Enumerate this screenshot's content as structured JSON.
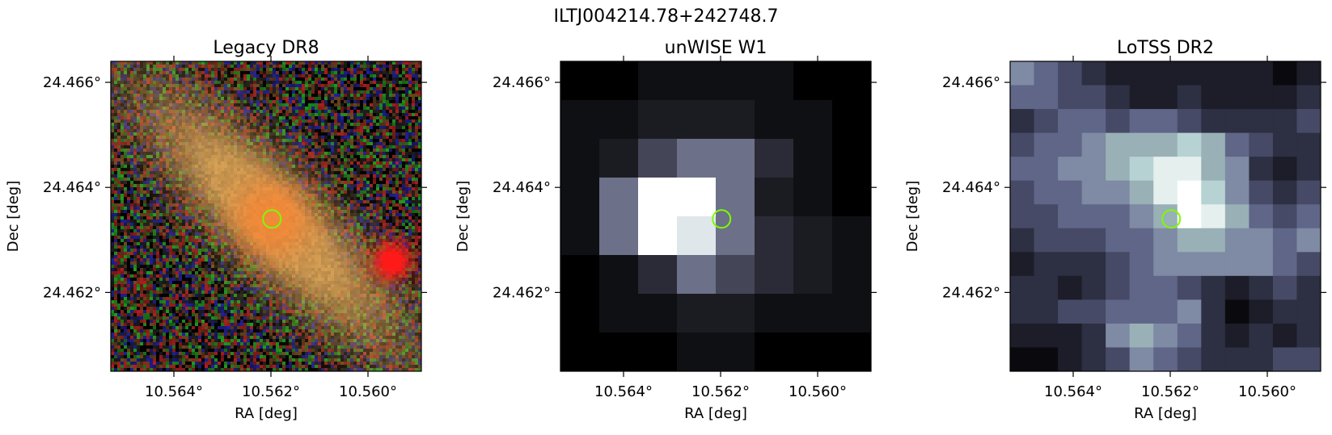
{
  "figure": {
    "title": "ILTJ004214.78+242748.7"
  },
  "colors": {
    "marker": "#7CFC00",
    "axis": "#000000",
    "legacy_core": "#F08A3A",
    "legacy_red_blob": "#FF1A1A",
    "noise": [
      "#1a1a1a",
      "#8a1a1a",
      "#1a7a1a",
      "#1a1a7a",
      "#5a3a1a",
      "#000000"
    ],
    "lotss_palette": [
      "#0a0a0e",
      "#1c1d28",
      "#2d2f42",
      "#464a66",
      "#5f6688",
      "#7f8aa4",
      "#99b0b6",
      "#b7d2d2",
      "#e4efee",
      "#ffffff"
    ],
    "unwise_palette": [
      "#000000",
      "#0f1013",
      "#1b1c22",
      "#2a2b36",
      "#444657",
      "#6c7088",
      "#9499a8",
      "#dfe7ea",
      "#ffffff"
    ]
  },
  "chart_data": [
    {
      "type": "heatmap",
      "title": "Legacy DR8",
      "xlabel": "RA [deg]",
      "ylabel": "Dec [deg]",
      "xlim": [
        10.5653,
        10.5589
      ],
      "ylim": [
        24.4605,
        24.4664
      ],
      "xticks": [
        10.564,
        10.562,
        10.56
      ],
      "xtick_labels": [
        "10.564°",
        "10.562°",
        "10.560°"
      ],
      "yticks": [
        24.466,
        24.464,
        24.462
      ],
      "ytick_labels": [
        "24.466°",
        "24.464°",
        "24.462°"
      ],
      "marker": {
        "ra": 10.56198,
        "dec": 24.4634,
        "shape": "circle"
      },
      "image": "RGB composite; elongated orange galaxy along diagonal, bright red compact source near lower right (RA 10.5595, Dec 24.4626), colored noise background"
    },
    {
      "type": "heatmap",
      "title": "unWISE W1",
      "xlabel": "RA [deg]",
      "ylabel": "Dec [deg]",
      "xlim": [
        10.5653,
        10.5589
      ],
      "ylim": [
        24.4605,
        24.4664
      ],
      "xticks": [
        10.564,
        10.562,
        10.56
      ],
      "xtick_labels": [
        "10.564°",
        "10.562°",
        "10.560°"
      ],
      "yticks": [
        24.466,
        24.464,
        24.462
      ],
      "ytick_labels": [
        "24.466°",
        "24.464°",
        "24.462°"
      ],
      "marker": {
        "ra": 10.56198,
        "dec": 24.4634,
        "shape": "circle"
      },
      "grid_levels": [
        [
          0,
          0,
          1,
          1,
          1,
          1,
          0,
          0
        ],
        [
          1,
          1,
          2,
          2,
          2,
          1,
          1,
          0
        ],
        [
          1,
          2,
          4,
          5,
          5,
          3,
          1,
          0
        ],
        [
          1,
          5,
          8,
          8,
          5,
          2,
          1,
          0
        ],
        [
          1,
          5,
          8,
          7,
          5,
          3,
          2,
          1
        ],
        [
          0,
          1,
          3,
          5,
          4,
          3,
          2,
          1
        ],
        [
          0,
          1,
          1,
          2,
          2,
          1,
          1,
          1
        ],
        [
          0,
          0,
          0,
          1,
          1,
          0,
          0,
          0
        ]
      ]
    },
    {
      "type": "heatmap",
      "title": "LoTSS DR2",
      "xlabel": "RA [deg]",
      "ylabel": "Dec [deg]",
      "xlim": [
        10.5653,
        10.5589
      ],
      "ylim": [
        24.4605,
        24.4664
      ],
      "xticks": [
        10.564,
        10.562,
        10.56
      ],
      "xtick_labels": [
        "10.564°",
        "10.562°",
        "10.560°"
      ],
      "yticks": [
        24.466,
        24.464,
        24.462
      ],
      "ytick_labels": [
        "24.466°",
        "24.464°",
        "24.462°"
      ],
      "marker": {
        "ra": 10.56198,
        "dec": 24.4634,
        "shape": "circle"
      },
      "grid_levels": [
        [
          5,
          4,
          3,
          2,
          1,
          1,
          1,
          1,
          1,
          1,
          1,
          0,
          1
        ],
        [
          4,
          4,
          3,
          3,
          2,
          1,
          1,
          2,
          1,
          1,
          1,
          1,
          2
        ],
        [
          2,
          3,
          4,
          4,
          3,
          4,
          4,
          3,
          2,
          2,
          2,
          2,
          3
        ],
        [
          3,
          4,
          4,
          5,
          6,
          6,
          6,
          7,
          6,
          4,
          3,
          2,
          2
        ],
        [
          4,
          4,
          5,
          5,
          6,
          7,
          8,
          8,
          6,
          5,
          2,
          1,
          2
        ],
        [
          3,
          4,
          4,
          5,
          5,
          6,
          8,
          9,
          7,
          5,
          3,
          2,
          3
        ],
        [
          3,
          3,
          4,
          4,
          4,
          5,
          6,
          9,
          8,
          6,
          4,
          3,
          4
        ],
        [
          2,
          3,
          3,
          3,
          4,
          4,
          5,
          6,
          6,
          5,
          5,
          4,
          5
        ],
        [
          1,
          2,
          2,
          2,
          3,
          4,
          5,
          5,
          5,
          5,
          5,
          4,
          3
        ],
        [
          2,
          2,
          1,
          2,
          3,
          4,
          4,
          3,
          2,
          1,
          2,
          3,
          2
        ],
        [
          2,
          2,
          3,
          3,
          4,
          4,
          4,
          5,
          2,
          0,
          1,
          2,
          2
        ],
        [
          1,
          1,
          1,
          2,
          5,
          6,
          5,
          4,
          2,
          1,
          2,
          1,
          2
        ],
        [
          0,
          0,
          1,
          2,
          3,
          5,
          4,
          3,
          2,
          2,
          2,
          3,
          3
        ]
      ]
    }
  ]
}
